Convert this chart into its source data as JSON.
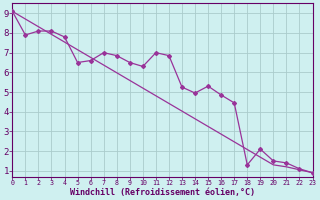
{
  "xlabel": "Windchill (Refroidissement éolien,°C)",
  "background_color": "#cff0f0",
  "grid_color": "#aacccc",
  "line_color": "#993399",
  "x_values": [
    0,
    1,
    2,
    3,
    4,
    5,
    6,
    7,
    8,
    9,
    10,
    11,
    12,
    13,
    14,
    15,
    16,
    17,
    18,
    19,
    20,
    21,
    22,
    23
  ],
  "straight_y": [
    9.1,
    8.71,
    8.32,
    7.93,
    7.54,
    7.15,
    6.76,
    6.37,
    5.98,
    5.59,
    5.2,
    4.81,
    4.42,
    4.03,
    3.64,
    3.25,
    2.86,
    2.47,
    2.08,
    1.69,
    1.3,
    1.2,
    1.05,
    0.9
  ],
  "zigzag_y": [
    9.1,
    7.9,
    8.1,
    8.1,
    7.8,
    6.5,
    6.6,
    7.0,
    6.85,
    6.5,
    6.3,
    7.0,
    6.85,
    5.25,
    4.95,
    5.3,
    4.85,
    4.45,
    1.3,
    2.1,
    1.5,
    1.4,
    1.1,
    0.9
  ],
  "xlim": [
    0,
    23
  ],
  "ylim": [
    0.7,
    9.5
  ],
  "yticks": [
    1,
    2,
    3,
    4,
    5,
    6,
    7,
    8,
    9
  ],
  "xticks": [
    0,
    1,
    2,
    3,
    4,
    5,
    6,
    7,
    8,
    9,
    10,
    11,
    12,
    13,
    14,
    15,
    16,
    17,
    18,
    19,
    20,
    21,
    22,
    23
  ]
}
